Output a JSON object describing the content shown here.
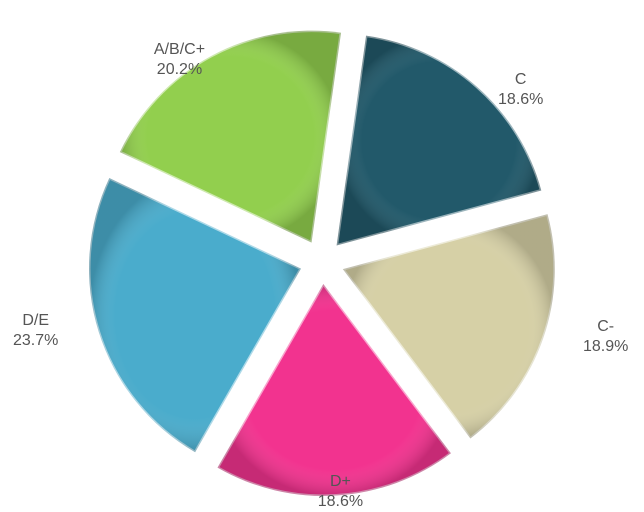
{
  "chart_data": {
    "type": "pie",
    "categories": [
      "C",
      "C-",
      "D+",
      "D/E",
      "A/B/C+"
    ],
    "values": [
      18.6,
      18.9,
      18.6,
      23.7,
      20.2
    ],
    "value_labels": [
      "18.6%",
      "18.9%",
      "18.6%",
      "23.7%",
      "20.2%"
    ],
    "colors": [
      "#22596a",
      "#d6d0a6",
      "#f2338f",
      "#4aaccc",
      "#92cf4e"
    ]
  }
}
